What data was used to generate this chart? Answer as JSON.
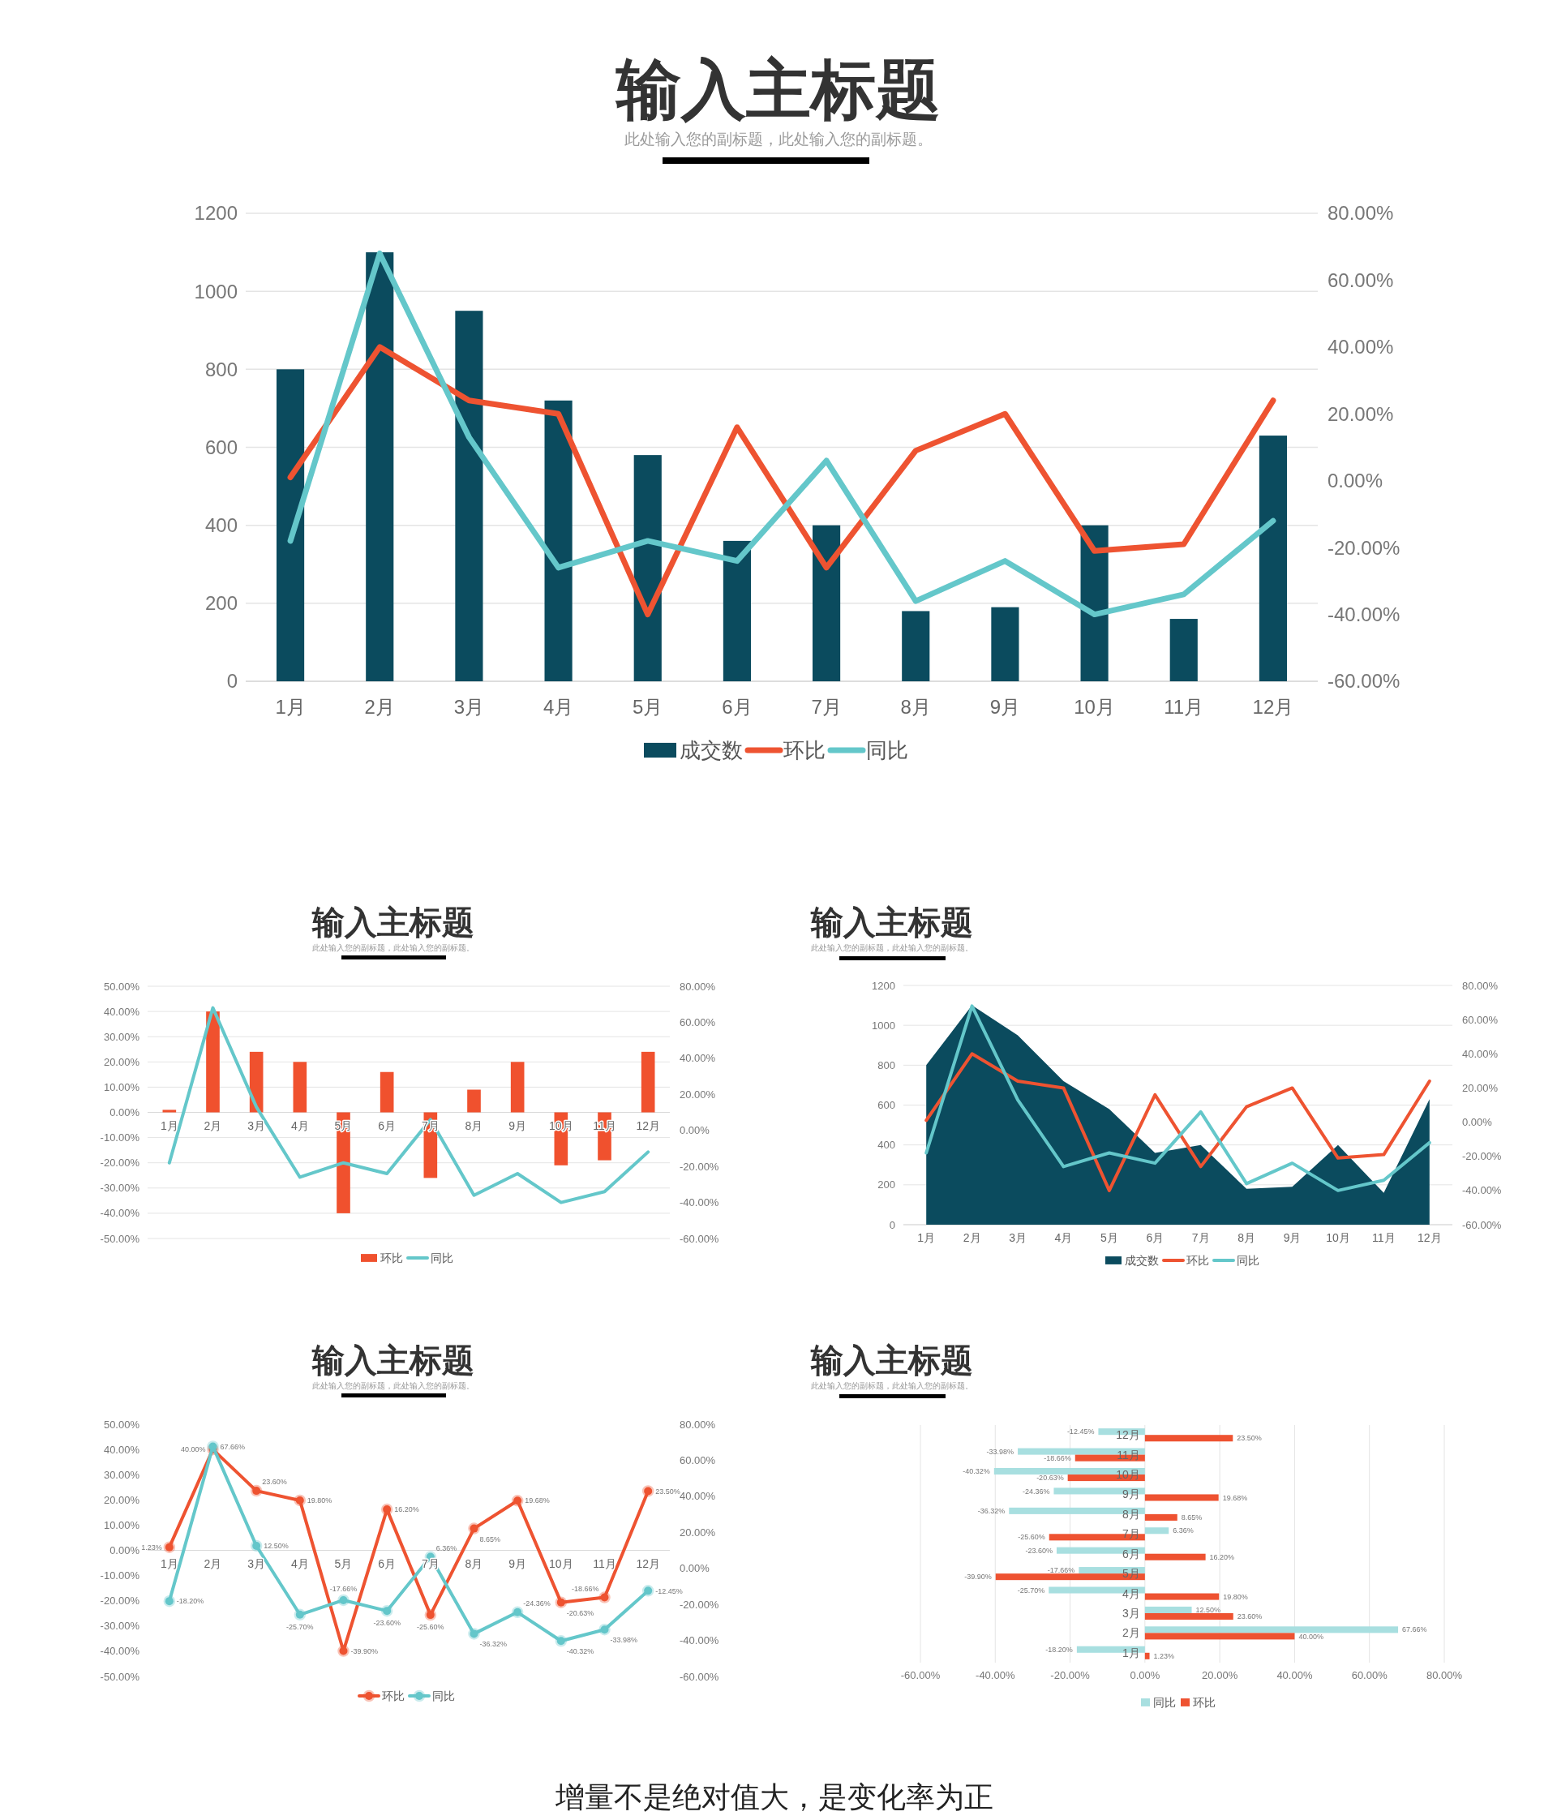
{
  "chart_data": [
    {
      "type": "bar",
      "title": "输入主标题",
      "subtitle": "此处输入您的副标题，此处输入您的副标题。",
      "categories": [
        "1月",
        "2月",
        "3月",
        "4月",
        "5月",
        "6月",
        "7月",
        "8月",
        "9月",
        "10月",
        "11月",
        "12月"
      ],
      "series": [
        {
          "name": "成交数",
          "type": "bar",
          "color": "#0b4b5e",
          "values": [
            800,
            1100,
            950,
            720,
            580,
            360,
            400,
            180,
            190,
            400,
            160,
            630
          ]
        },
        {
          "name": "环比",
          "type": "line",
          "axis": "y2",
          "color": "#ee5331",
          "values": [
            1,
            40,
            24,
            20,
            -40,
            16,
            -26,
            9,
            20,
            -21,
            -19,
            24
          ]
        },
        {
          "name": "同比",
          "type": "line",
          "axis": "y2",
          "color": "#64c7ca",
          "values": [
            -18,
            68,
            13,
            -26,
            -18,
            -24,
            6,
            -36,
            -24,
            -40,
            -34,
            -12
          ]
        }
      ],
      "ylim": [
        0,
        1200
      ],
      "yticks": [
        0,
        200,
        400,
        600,
        800,
        1000,
        1200
      ],
      "y2lim": [
        -60,
        80
      ],
      "y2ticks": [
        {
          "value": -60,
          "label": "-60.00%"
        },
        {
          "value": -40,
          "label": "-40.00%"
        },
        {
          "value": -20,
          "label": "-20.00%"
        },
        {
          "value": 0,
          "label": "0.00%"
        },
        {
          "value": 20,
          "label": "20.00%"
        },
        {
          "value": 40,
          "label": "40.00%"
        },
        {
          "value": 60,
          "label": "60.00%"
        },
        {
          "value": 80,
          "label": "80.00%"
        }
      ],
      "grid": "y",
      "legend": "bottom"
    },
    {
      "type": "bar",
      "title": "输入主标题",
      "subtitle": "此处输入您的副标题，此处输入您的副标题。",
      "categories": [
        "1月",
        "2月",
        "3月",
        "4月",
        "5月",
        "6月",
        "7月",
        "8月",
        "9月",
        "10月",
        "11月",
        "12月"
      ],
      "series": [
        {
          "name": "环比",
          "type": "bar",
          "color": "#f0512e",
          "values": [
            1,
            40,
            24,
            20,
            -40,
            16,
            -26,
            9,
            20,
            -21,
            -19,
            24
          ]
        },
        {
          "name": "同比",
          "type": "line",
          "axis": "y2",
          "color": "#64c7ca",
          "values": [
            -18,
            68,
            13,
            -26,
            -18,
            -24,
            6,
            -36,
            -24,
            -40,
            -34,
            -12
          ]
        }
      ],
      "ylim": [
        -50,
        50
      ],
      "yticks": [
        {
          "value": -50,
          "label": "-50.00%"
        },
        {
          "value": -40,
          "label": "-40.00%"
        },
        {
          "value": -30,
          "label": "-30.00%"
        },
        {
          "value": -20,
          "label": "-20.00%"
        },
        {
          "value": -10,
          "label": "-10.00%"
        },
        {
          "value": 0,
          "label": "0.00%"
        },
        {
          "value": 10,
          "label": "10.00%"
        },
        {
          "value": 20,
          "label": "20.00%"
        },
        {
          "value": 30,
          "label": "30.00%"
        },
        {
          "value": 40,
          "label": "40.00%"
        },
        {
          "value": 50,
          "label": "50.00%"
        }
      ],
      "y2lim": [
        -60,
        80
      ],
      "y2ticks": [
        {
          "value": -60,
          "label": "-60.00%"
        },
        {
          "value": -40,
          "label": "-40.00%"
        },
        {
          "value": -20,
          "label": "-20.00%"
        },
        {
          "value": 0,
          "label": "0.00%"
        },
        {
          "value": 20,
          "label": "20.00%"
        },
        {
          "value": 40,
          "label": "40.00%"
        },
        {
          "value": 60,
          "label": "60.00%"
        },
        {
          "value": 80,
          "label": "80.00%"
        }
      ],
      "grid": "y",
      "legend": "bottom"
    },
    {
      "type": "area",
      "title": "输入主标题",
      "subtitle": "此处输入您的副标题，此处输入您的副标题。",
      "categories": [
        "1月",
        "2月",
        "3月",
        "4月",
        "5月",
        "6月",
        "7月",
        "8月",
        "9月",
        "10月",
        "11月",
        "12月"
      ],
      "series": [
        {
          "name": "成交数",
          "type": "area",
          "color": "#0b4b5e",
          "values": [
            800,
            1100,
            950,
            720,
            580,
            360,
            400,
            180,
            190,
            400,
            160,
            630
          ]
        },
        {
          "name": "环比",
          "type": "line",
          "axis": "y2",
          "color": "#ee5331",
          "values": [
            1,
            40,
            24,
            20,
            -40,
            16,
            -26,
            9,
            20,
            -21,
            -19,
            24
          ]
        },
        {
          "name": "同比",
          "type": "line",
          "axis": "y2",
          "color": "#64c7ca",
          "values": [
            -18,
            68,
            13,
            -26,
            -18,
            -24,
            6,
            -36,
            -24,
            -40,
            -34,
            -12
          ]
        }
      ],
      "ylim": [
        0,
        1200
      ],
      "yticks": [
        0,
        200,
        400,
        600,
        800,
        1000,
        1200
      ],
      "y2lim": [
        -60,
        80
      ],
      "y2ticks": [
        {
          "value": -60,
          "label": "-60.00%"
        },
        {
          "value": -40,
          "label": "-40.00%"
        },
        {
          "value": -20,
          "label": "-20.00%"
        },
        {
          "value": 0,
          "label": "0.00%"
        },
        {
          "value": 20,
          "label": "20.00%"
        },
        {
          "value": 40,
          "label": "40.00%"
        },
        {
          "value": 60,
          "label": "60.00%"
        },
        {
          "value": 80,
          "label": "80.00%"
        }
      ],
      "grid": "y",
      "legend": "bottom"
    },
    {
      "type": "line",
      "title": "输入主标题",
      "subtitle": "此处输入您的副标题，此处输入您的副标题。",
      "categories": [
        "1月",
        "2月",
        "3月",
        "4月",
        "5月",
        "6月",
        "7月",
        "8月",
        "9月",
        "10月",
        "11月",
        "12月"
      ],
      "series": [
        {
          "name": "环比",
          "color": "#ee5331",
          "values": [
            1.23,
            40.0,
            23.6,
            19.8,
            -39.9,
            16.2,
            -25.6,
            8.65,
            19.68,
            -20.63,
            -18.66,
            23.5
          ],
          "value_labels": [
            "1.23%",
            "40.00%",
            "23.60%",
            "19.80%",
            "-39.90%",
            "16.20%",
            "-25.60%",
            "8.65%",
            "19.68%",
            "-20.63%",
            "-18.66%",
            "23.50%"
          ]
        },
        {
          "name": "同比",
          "axis": "y2",
          "color": "#64c7ca",
          "values": [
            -18.2,
            67.66,
            12.5,
            -25.7,
            -17.66,
            -23.6,
            6.36,
            -36.32,
            -24.36,
            -40.32,
            -33.98,
            -12.45
          ],
          "value_labels": [
            "-18.20%",
            "67.66%",
            "12.50%",
            "-25.70%",
            "-17.66%",
            "-23.60%",
            "6.36%",
            "-36.32%",
            "-24.36%",
            "-40.32%",
            "-33.98%",
            "-12.45%"
          ]
        }
      ],
      "ylim": [
        -50,
        50
      ],
      "yticks": [
        {
          "value": -50,
          "label": "-50.00%"
        },
        {
          "value": -40,
          "label": "-40.00%"
        },
        {
          "value": -30,
          "label": "-30.00%"
        },
        {
          "value": -20,
          "label": "-20.00%"
        },
        {
          "value": -10,
          "label": "-10.00%"
        },
        {
          "value": 0,
          "label": "0.00%"
        },
        {
          "value": 10,
          "label": "10.00%"
        },
        {
          "value": 20,
          "label": "20.00%"
        },
        {
          "value": 30,
          "label": "30.00%"
        },
        {
          "value": 40,
          "label": "40.00%"
        },
        {
          "value": 50,
          "label": "50.00%"
        }
      ],
      "y2lim": [
        -60,
        80
      ],
      "y2ticks": [
        {
          "value": -60,
          "label": "-60.00%"
        },
        {
          "value": -40,
          "label": "-40.00%"
        },
        {
          "value": -20,
          "label": "-20.00%"
        },
        {
          "value": 0,
          "label": "0.00%"
        },
        {
          "value": 20,
          "label": "20.00%"
        },
        {
          "value": 40,
          "label": "40.00%"
        },
        {
          "value": 60,
          "label": "60.00%"
        },
        {
          "value": 80,
          "label": "80.00%"
        }
      ],
      "marker": "circle",
      "legend": "bottom"
    },
    {
      "type": "bar",
      "orientation": "horizontal",
      "title": "输入主标题",
      "subtitle": "此处输入您的副标题，此处输入您的副标题。",
      "categories": [
        "12月",
        "11月",
        "10月",
        "9月",
        "8月",
        "7月",
        "6月",
        "5月",
        "4月",
        "3月",
        "2月",
        "1月"
      ],
      "series": [
        {
          "name": "同比",
          "color": "#a8dfe0",
          "values": [
            -12.45,
            -33.98,
            -40.32,
            -24.36,
            -36.32,
            6.36,
            -23.6,
            -17.66,
            -25.7,
            12.5,
            67.66,
            -18.2
          ],
          "value_labels": [
            "-12.45%",
            "-33.98%",
            "-40.32%",
            "-24.36%",
            "-36.32%",
            "6.36%",
            "-23.60%",
            "-17.66%",
            "-25.70%",
            "12.50%",
            "67.66%",
            "-18.20%"
          ]
        },
        {
          "name": "环比",
          "color": "#ee5231",
          "values": [
            23.5,
            -18.66,
            -20.63,
            19.68,
            8.65,
            -25.6,
            16.2,
            -39.9,
            19.8,
            23.6,
            40.0,
            1.23
          ],
          "value_labels": [
            "23.50%",
            "-18.66%",
            "-20.63%",
            "19.68%",
            "8.65%",
            "-25.60%",
            "16.20%",
            "-39.90%",
            "19.80%",
            "23.60%",
            "40.00%",
            "1.23%"
          ]
        }
      ],
      "xlim": [
        -60,
        80
      ],
      "xticks": [
        {
          "value": -60,
          "label": "-60.00%"
        },
        {
          "value": -40,
          "label": "-40.00%"
        },
        {
          "value": -20,
          "label": "-20.00%"
        },
        {
          "value": 0,
          "label": "0.00%"
        },
        {
          "value": 20,
          "label": "20.00%"
        },
        {
          "value": 40,
          "label": "40.00%"
        },
        {
          "value": 60,
          "label": "60.00%"
        },
        {
          "value": 80,
          "label": "80.00%"
        }
      ],
      "grid": "x",
      "legend": "bottom"
    },
    {
      "type": "other",
      "annotations": [
        "增量不是绝对值大，是变化率为正"
      ]
    }
  ]
}
